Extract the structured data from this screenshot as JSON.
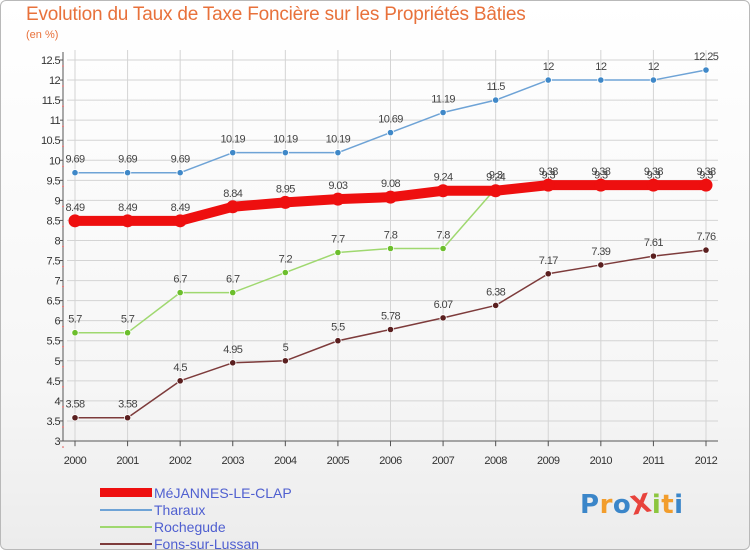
{
  "title": "Evolution du Taux de Taxe Foncière sur les Propriétés Bâties",
  "unit_label": "(en %)",
  "logo": {
    "text": "ProXiti",
    "letters": [
      "P",
      "r",
      "o",
      "X",
      "i",
      "t",
      "i"
    ],
    "colors": [
      "#3b86c9",
      "#f29d2c",
      "#3b86c9",
      "#e8433c",
      "#8cc63f",
      "#f29d2c",
      "#3b86c9"
    ]
  },
  "chart_data": {
    "type": "line",
    "title": "Evolution du Taux de Taxe Foncière sur les Propriétés Bâties",
    "ylabel": "(en %)",
    "xlabel": "",
    "ylim": [
      3,
      12.5
    ],
    "yticks": [
      "3",
      "3.5",
      "4",
      "4.5",
      "5",
      "5.5",
      "6",
      "6.5",
      "7",
      "7.5",
      "8",
      "8.5",
      "9",
      "9.5",
      "10",
      "10.5",
      "11",
      "11.5",
      "12",
      "12.5"
    ],
    "categories": [
      "2000",
      "2001",
      "2002",
      "2003",
      "2004",
      "2005",
      "2006",
      "2007",
      "2008",
      "2009",
      "2010",
      "2011",
      "2012"
    ],
    "grid": true,
    "legend_position": "bottom-left",
    "series": [
      {
        "name": "Tharaux",
        "color": "#6ea3d6",
        "marker": "#3f88c8",
        "values": [
          9.69,
          9.69,
          9.69,
          10.19,
          10.19,
          10.19,
          10.69,
          11.19,
          11.5,
          12,
          12,
          12,
          12.25
        ],
        "labels": [
          "9.69",
          "9.69",
          "9.69",
          "10.19",
          "10.19",
          "10.19",
          "10.69",
          "11.19",
          "11.5",
          "12",
          "12",
          "12",
          "12.25"
        ]
      },
      {
        "name": "Rochegude",
        "color": "#9fd86f",
        "marker": "#6cbe2c",
        "values": [
          5.7,
          5.7,
          6.7,
          6.7,
          7.2,
          7.7,
          7.8,
          7.8,
          9.3,
          9.3,
          9.3,
          9.3,
          9.3
        ],
        "labels": [
          "5.7",
          "5.7",
          "6.7",
          "6.7",
          "7.2",
          "7.7",
          "7.8",
          "7.8",
          "9.3",
          "9.3",
          "9.3",
          "9.3",
          "9.3"
        ]
      },
      {
        "name": "Fons-sur-Lussan",
        "color": "#7d3b3b",
        "marker": "#5a1f1f",
        "values": [
          3.58,
          3.58,
          4.5,
          4.95,
          5,
          5.5,
          5.78,
          6.07,
          6.38,
          7.17,
          7.39,
          7.61,
          7.76
        ],
        "labels": [
          "3.58",
          "3.58",
          "4.5",
          "4.95",
          "5",
          "5.5",
          "5.78",
          "6.07",
          "6.38",
          "7.17",
          "7.39",
          "7.61",
          "7.76"
        ]
      },
      {
        "name": "MéJANNES-LE-CLAP",
        "color": "#ee0f0f",
        "marker": "#ee0f0f",
        "values": [
          8.49,
          8.49,
          8.49,
          8.84,
          8.95,
          9.03,
          9.08,
          9.24,
          9.24,
          9.38,
          9.38,
          9.38,
          9.38
        ],
        "labels": [
          "8.49",
          "8.49",
          "8.49",
          "8.84",
          "8.95",
          "9.03",
          "9.08",
          "9.24",
          "9.24",
          "9.38",
          "9.38",
          "9.38",
          "9.38"
        ]
      }
    ]
  }
}
